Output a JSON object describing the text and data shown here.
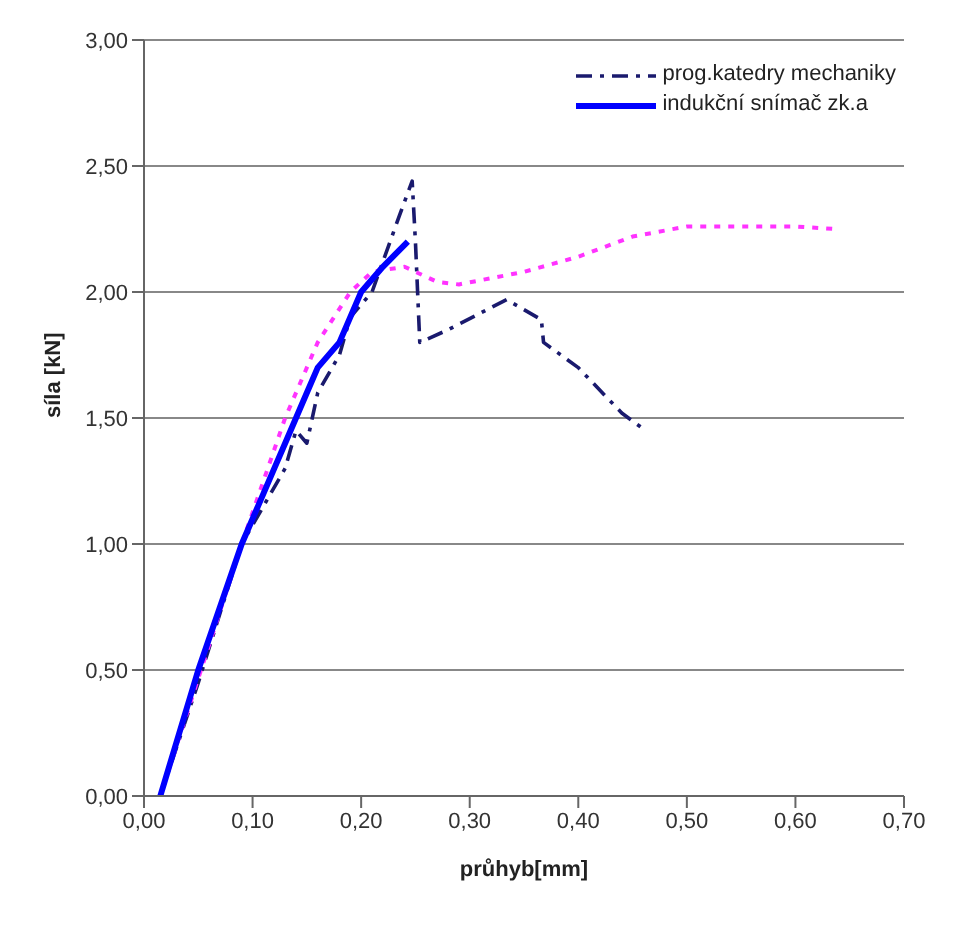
{
  "chart_data": {
    "type": "line",
    "xlabel": "průhyb[mm]",
    "ylabel": "síla [kN]",
    "xlim": [
      0,
      0.7
    ],
    "ylim": [
      0,
      3
    ],
    "xticks": [
      {
        "value": 0,
        "label": "0,00"
      },
      {
        "value": 0.1,
        "label": "0,10"
      },
      {
        "value": 0.2,
        "label": "0,20"
      },
      {
        "value": 0.3,
        "label": "0,30"
      },
      {
        "value": 0.4,
        "label": "0,40"
      },
      {
        "value": 0.5,
        "label": "0,50"
      },
      {
        "value": 0.6,
        "label": "0,60"
      },
      {
        "value": 0.7,
        "label": "0,70"
      }
    ],
    "yticks": [
      {
        "value": 0,
        "label": "0,00"
      },
      {
        "value": 0.5,
        "label": "0,50"
      },
      {
        "value": 1,
        "label": "1,00"
      },
      {
        "value": 1.5,
        "label": "1,50"
      },
      {
        "value": 2,
        "label": "2,00"
      },
      {
        "value": 2.5,
        "label": "2,50"
      },
      {
        "value": 3,
        "label": "3,00"
      }
    ],
    "grid": "y",
    "legend": "top right",
    "marker": "none",
    "series": [
      {
        "name": "prog.katedry mechaniky",
        "color": "#1a1a6e",
        "line_style": "dashed",
        "x": [
          0.015,
          0.05,
          0.09,
          0.13,
          0.14,
          0.15,
          0.16,
          0.18,
          0.19,
          0.21,
          0.235,
          0.247,
          0.25,
          0.254,
          0.28,
          0.334,
          0.366,
          0.368,
          0.4,
          0.44,
          0.462
        ],
        "values": [
          0,
          0.45,
          1.0,
          1.3,
          1.45,
          1.4,
          1.6,
          1.75,
          1.9,
          2.0,
          2.3,
          2.44,
          2.2,
          1.8,
          1.85,
          1.97,
          1.89,
          1.8,
          1.7,
          1.52,
          1.45
        ]
      },
      {
        "color": "#ff33ff",
        "line_style": "dotted",
        "x": [
          0.015,
          0.06,
          0.09,
          0.13,
          0.16,
          0.19,
          0.21,
          0.24,
          0.27,
          0.29,
          0.35,
          0.4,
          0.45,
          0.5,
          0.55,
          0.6,
          0.636
        ],
        "values": [
          0,
          0.6,
          1.0,
          1.5,
          1.8,
          2.0,
          2.08,
          2.1,
          2.04,
          2.03,
          2.08,
          2.14,
          2.22,
          2.26,
          2.26,
          2.26,
          2.25
        ]
      },
      {
        "name": "indukční snímač zk.a",
        "color": "#0000ff",
        "line_style": "solid",
        "x": [
          0.015,
          0.05,
          0.09,
          0.12,
          0.13,
          0.15,
          0.16,
          0.18,
          0.2,
          0.22,
          0.243
        ],
        "values": [
          0,
          0.5,
          1.0,
          1.3,
          1.4,
          1.6,
          1.7,
          1.8,
          2.0,
          2.1,
          2.2
        ]
      }
    ]
  }
}
